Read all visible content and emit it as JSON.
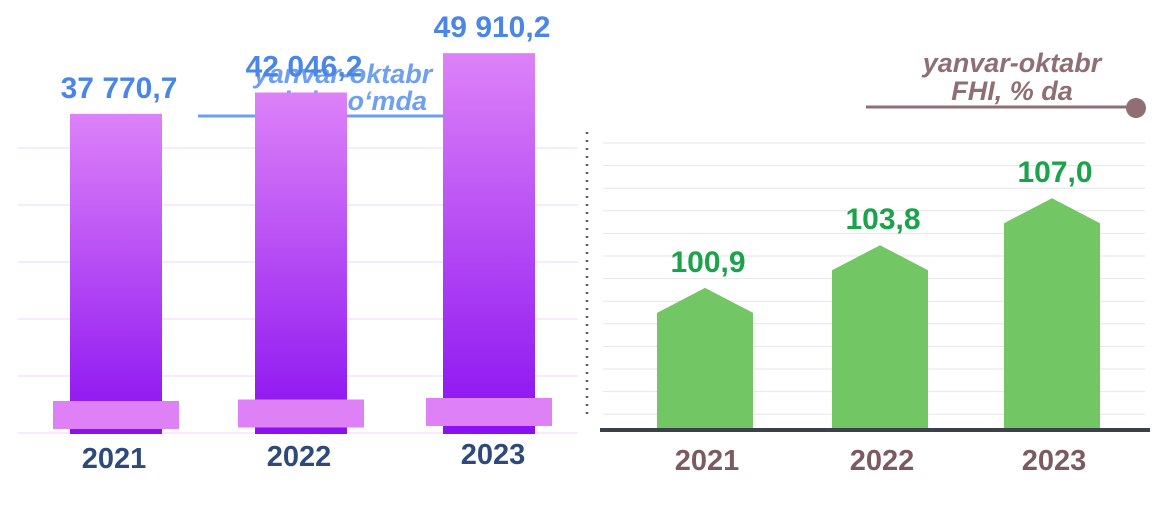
{
  "left_chart": {
    "header_line1": "yanvar-oktabr",
    "header_line2": "mlrd. so‘mda",
    "colors": {
      "header": "#6f9ff0",
      "value": "#4a86e8",
      "year": "#2e4a7a",
      "bar_top": "#dd82f8",
      "bar_bottom": "#8a10f0",
      "base": "#de80f6"
    }
  },
  "right_chart": {
    "header_line1": "yanvar-oktabr",
    "header_line2": "FHI, % da",
    "colors": {
      "header": "#8f6f74",
      "value": "#1aa34a",
      "year": "#7c5a62",
      "bar": "#72c664",
      "axis": "#3c4048"
    }
  },
  "chart_data": [
    {
      "type": "bar",
      "categories": [
        "2021",
        "2022",
        "2023"
      ],
      "values": [
        37770.7,
        42046.2,
        49910.2
      ],
      "value_labels": [
        "37 770,7",
        "42 046,2",
        "49 910,2"
      ],
      "title": "yanvar-oktabr mlrd. so‘mda",
      "grid": true
    },
    {
      "type": "bar",
      "categories": [
        "2021",
        "2022",
        "2023"
      ],
      "values": [
        100.9,
        103.8,
        107.0
      ],
      "value_labels": [
        "100,9",
        "103,8",
        "107,0"
      ],
      "title": "yanvar-oktabr FHI, % da",
      "grid": true
    }
  ]
}
